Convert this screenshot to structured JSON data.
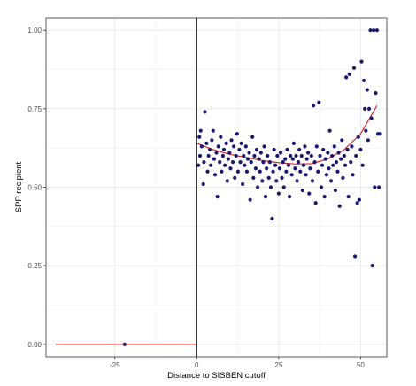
{
  "chart_data": {
    "type": "scatter",
    "title": "",
    "xlabel": "Distance to SISBEN cutoff",
    "ylabel": "SPP recipient",
    "xlim": [
      -46,
      58
    ],
    "ylim": [
      -0.04,
      1.04
    ],
    "x_ticks": [
      -25,
      0,
      25,
      50
    ],
    "x_tick_labels": [
      "-25",
      "0",
      "25",
      "50"
    ],
    "y_ticks": [
      0.0,
      0.25,
      0.5,
      0.75,
      1.0
    ],
    "y_tick_labels": [
      "0.00",
      "0.25",
      "0.50",
      "0.75",
      "1.00"
    ],
    "grid": true,
    "legend": "none",
    "cutoff_x": 0,
    "colors": {
      "points": "#191970",
      "fit_line": "#d7191c",
      "cutoff_line": "#000000",
      "grid": "#e6e6e6",
      "panel_border": "#333333"
    },
    "fit_left": {
      "x": [
        -43,
        0
      ],
      "y": [
        0.0,
        0.0
      ]
    },
    "fit_right": {
      "x": [
        0,
        5,
        10,
        15,
        20,
        25,
        30,
        35,
        40,
        45,
        50,
        55
      ],
      "y": [
        0.64,
        0.62,
        0.605,
        0.595,
        0.585,
        0.578,
        0.574,
        0.575,
        0.59,
        0.62,
        0.67,
        0.76
      ]
    },
    "points_left": [
      {
        "x": -22,
        "y": 0.0
      }
    ],
    "points_right": [
      {
        "x": 0.5,
        "y": 0.57
      },
      {
        "x": 0.8,
        "y": 0.66
      },
      {
        "x": 1.0,
        "y": 0.6
      },
      {
        "x": 1.2,
        "y": 0.68
      },
      {
        "x": 1.5,
        "y": 0.63
      },
      {
        "x": 2.0,
        "y": 0.51
      },
      {
        "x": 2.2,
        "y": 0.58
      },
      {
        "x": 2.5,
        "y": 0.74
      },
      {
        "x": 3.0,
        "y": 0.64
      },
      {
        "x": 3.3,
        "y": 0.55
      },
      {
        "x": 3.6,
        "y": 0.6
      },
      {
        "x": 4.0,
        "y": 0.62
      },
      {
        "x": 4.3,
        "y": 0.57
      },
      {
        "x": 4.6,
        "y": 0.65
      },
      {
        "x": 5.0,
        "y": 0.68
      },
      {
        "x": 5.3,
        "y": 0.59
      },
      {
        "x": 5.6,
        "y": 0.54
      },
      {
        "x": 6.0,
        "y": 0.61
      },
      {
        "x": 6.3,
        "y": 0.47
      },
      {
        "x": 6.6,
        "y": 0.63
      },
      {
        "x": 7.0,
        "y": 0.58
      },
      {
        "x": 7.3,
        "y": 0.66
      },
      {
        "x": 7.6,
        "y": 0.55
      },
      {
        "x": 8.0,
        "y": 0.6
      },
      {
        "x": 8.3,
        "y": 0.62
      },
      {
        "x": 8.6,
        "y": 0.57
      },
      {
        "x": 9.0,
        "y": 0.64
      },
      {
        "x": 9.3,
        "y": 0.52
      },
      {
        "x": 9.6,
        "y": 0.59
      },
      {
        "x": 10.0,
        "y": 0.61
      },
      {
        "x": 10.3,
        "y": 0.56
      },
      {
        "x": 10.6,
        "y": 0.65
      },
      {
        "x": 11.0,
        "y": 0.58
      },
      {
        "x": 11.3,
        "y": 0.63
      },
      {
        "x": 11.6,
        "y": 0.53
      },
      {
        "x": 12.0,
        "y": 0.6
      },
      {
        "x": 12.3,
        "y": 0.67
      },
      {
        "x": 12.6,
        "y": 0.55
      },
      {
        "x": 13.0,
        "y": 0.62
      },
      {
        "x": 13.3,
        "y": 0.58
      },
      {
        "x": 13.6,
        "y": 0.64
      },
      {
        "x": 14.0,
        "y": 0.51
      },
      {
        "x": 14.3,
        "y": 0.6
      },
      {
        "x": 14.6,
        "y": 0.57
      },
      {
        "x": 15.0,
        "y": 0.63
      },
      {
        "x": 15.3,
        "y": 0.55
      },
      {
        "x": 15.6,
        "y": 0.59
      },
      {
        "x": 16.0,
        "y": 0.61
      },
      {
        "x": 16.3,
        "y": 0.46
      },
      {
        "x": 16.6,
        "y": 0.58
      },
      {
        "x": 17.0,
        "y": 0.66
      },
      {
        "x": 17.3,
        "y": 0.53
      },
      {
        "x": 17.6,
        "y": 0.6
      },
      {
        "x": 18.0,
        "y": 0.56
      },
      {
        "x": 18.3,
        "y": 0.62
      },
      {
        "x": 18.6,
        "y": 0.5
      },
      {
        "x": 19.0,
        "y": 0.59
      },
      {
        "x": 19.3,
        "y": 0.55
      },
      {
        "x": 19.6,
        "y": 0.61
      },
      {
        "x": 20.0,
        "y": 0.52
      },
      {
        "x": 20.3,
        "y": 0.58
      },
      {
        "x": 20.6,
        "y": 0.63
      },
      {
        "x": 21.0,
        "y": 0.47
      },
      {
        "x": 21.3,
        "y": 0.56
      },
      {
        "x": 21.6,
        "y": 0.6
      },
      {
        "x": 22.0,
        "y": 0.53
      },
      {
        "x": 22.3,
        "y": 0.58
      },
      {
        "x": 22.6,
        "y": 0.5
      },
      {
        "x": 23.0,
        "y": 0.4
      },
      {
        "x": 23.3,
        "y": 0.55
      },
      {
        "x": 23.6,
        "y": 0.62
      },
      {
        "x": 24.0,
        "y": 0.57
      },
      {
        "x": 24.3,
        "y": 0.52
      },
      {
        "x": 24.6,
        "y": 0.6
      },
      {
        "x": 25.0,
        "y": 0.48
      },
      {
        "x": 25.3,
        "y": 0.56
      },
      {
        "x": 25.6,
        "y": 0.61
      },
      {
        "x": 26.0,
        "y": 0.53
      },
      {
        "x": 26.3,
        "y": 0.58
      },
      {
        "x": 26.6,
        "y": 0.5
      },
      {
        "x": 27.0,
        "y": 0.59
      },
      {
        "x": 27.3,
        "y": 0.55
      },
      {
        "x": 27.6,
        "y": 0.62
      },
      {
        "x": 28.0,
        "y": 0.57
      },
      {
        "x": 28.3,
        "y": 0.47
      },
      {
        "x": 28.6,
        "y": 0.6
      },
      {
        "x": 29.0,
        "y": 0.54
      },
      {
        "x": 29.3,
        "y": 0.59
      },
      {
        "x": 29.6,
        "y": 0.64
      },
      {
        "x": 30.0,
        "y": 0.56
      },
      {
        "x": 30.3,
        "y": 0.6
      },
      {
        "x": 30.6,
        "y": 0.52
      },
      {
        "x": 31.0,
        "y": 0.58
      },
      {
        "x": 31.3,
        "y": 0.62
      },
      {
        "x": 31.6,
        "y": 0.55
      },
      {
        "x": 32.0,
        "y": 0.6
      },
      {
        "x": 32.3,
        "y": 0.49
      },
      {
        "x": 32.6,
        "y": 0.57
      },
      {
        "x": 33.0,
        "y": 0.63
      },
      {
        "x": 33.3,
        "y": 0.54
      },
      {
        "x": 33.6,
        "y": 0.59
      },
      {
        "x": 34.0,
        "y": 0.61
      },
      {
        "x": 34.3,
        "y": 0.48
      },
      {
        "x": 34.6,
        "y": 0.56
      },
      {
        "x": 35.0,
        "y": 0.6
      },
      {
        "x": 35.3,
        "y": 0.52
      },
      {
        "x": 35.6,
        "y": 0.76
      },
      {
        "x": 36.0,
        "y": 0.58
      },
      {
        "x": 36.3,
        "y": 0.45
      },
      {
        "x": 36.6,
        "y": 0.63
      },
      {
        "x": 37.0,
        "y": 0.55
      },
      {
        "x": 37.3,
        "y": 0.77
      },
      {
        "x": 37.6,
        "y": 0.6
      },
      {
        "x": 38.0,
        "y": 0.5
      },
      {
        "x": 38.3,
        "y": 0.57
      },
      {
        "x": 38.6,
        "y": 0.62
      },
      {
        "x": 39.0,
        "y": 0.47
      },
      {
        "x": 39.3,
        "y": 0.59
      },
      {
        "x": 39.6,
        "y": 0.54
      },
      {
        "x": 40.0,
        "y": 0.61
      },
      {
        "x": 40.3,
        "y": 0.56
      },
      {
        "x": 40.6,
        "y": 0.68
      },
      {
        "x": 41.0,
        "y": 0.52
      },
      {
        "x": 41.3,
        "y": 0.6
      },
      {
        "x": 41.6,
        "y": 0.57
      },
      {
        "x": 42.0,
        "y": 0.63
      },
      {
        "x": 42.3,
        "y": 0.49
      },
      {
        "x": 42.6,
        "y": 0.58
      },
      {
        "x": 43.0,
        "y": 0.55
      },
      {
        "x": 43.3,
        "y": 0.61
      },
      {
        "x": 43.6,
        "y": 0.44
      },
      {
        "x": 44.0,
        "y": 0.59
      },
      {
        "x": 44.3,
        "y": 0.65
      },
      {
        "x": 44.6,
        "y": 0.53
      },
      {
        "x": 45.0,
        "y": 0.6
      },
      {
        "x": 45.3,
        "y": 0.57
      },
      {
        "x": 45.6,
        "y": 0.85
      },
      {
        "x": 46.0,
        "y": 0.62
      },
      {
        "x": 46.3,
        "y": 0.47
      },
      {
        "x": 46.6,
        "y": 0.86
      },
      {
        "x": 47.0,
        "y": 0.58
      },
      {
        "x": 47.3,
        "y": 0.63
      },
      {
        "x": 47.6,
        "y": 0.54
      },
      {
        "x": 48.0,
        "y": 0.88
      },
      {
        "x": 48.3,
        "y": 0.28
      },
      {
        "x": 48.6,
        "y": 0.6
      },
      {
        "x": 49.0,
        "y": 0.45
      },
      {
        "x": 49.3,
        "y": 0.66
      },
      {
        "x": 49.6,
        "y": 0.46
      },
      {
        "x": 50.0,
        "y": 0.62
      },
      {
        "x": 50.3,
        "y": 0.9
      },
      {
        "x": 50.6,
        "y": 0.57
      },
      {
        "x": 51.0,
        "y": 0.84
      },
      {
        "x": 51.3,
        "y": 0.75
      },
      {
        "x": 51.6,
        "y": 0.68
      },
      {
        "x": 52.0,
        "y": 0.81
      },
      {
        "x": 52.3,
        "y": 0.65
      },
      {
        "x": 52.6,
        "y": 0.75
      },
      {
        "x": 53.0,
        "y": 1.0
      },
      {
        "x": 53.3,
        "y": 0.72
      },
      {
        "x": 53.6,
        "y": 0.25
      },
      {
        "x": 54.0,
        "y": 1.0
      },
      {
        "x": 54.3,
        "y": 0.5
      },
      {
        "x": 54.6,
        "y": 0.8
      },
      {
        "x": 55.0,
        "y": 1.0
      },
      {
        "x": 55.3,
        "y": 0.67
      },
      {
        "x": 55.6,
        "y": 0.5
      },
      {
        "x": 56.0,
        "y": 0.67
      }
    ]
  }
}
